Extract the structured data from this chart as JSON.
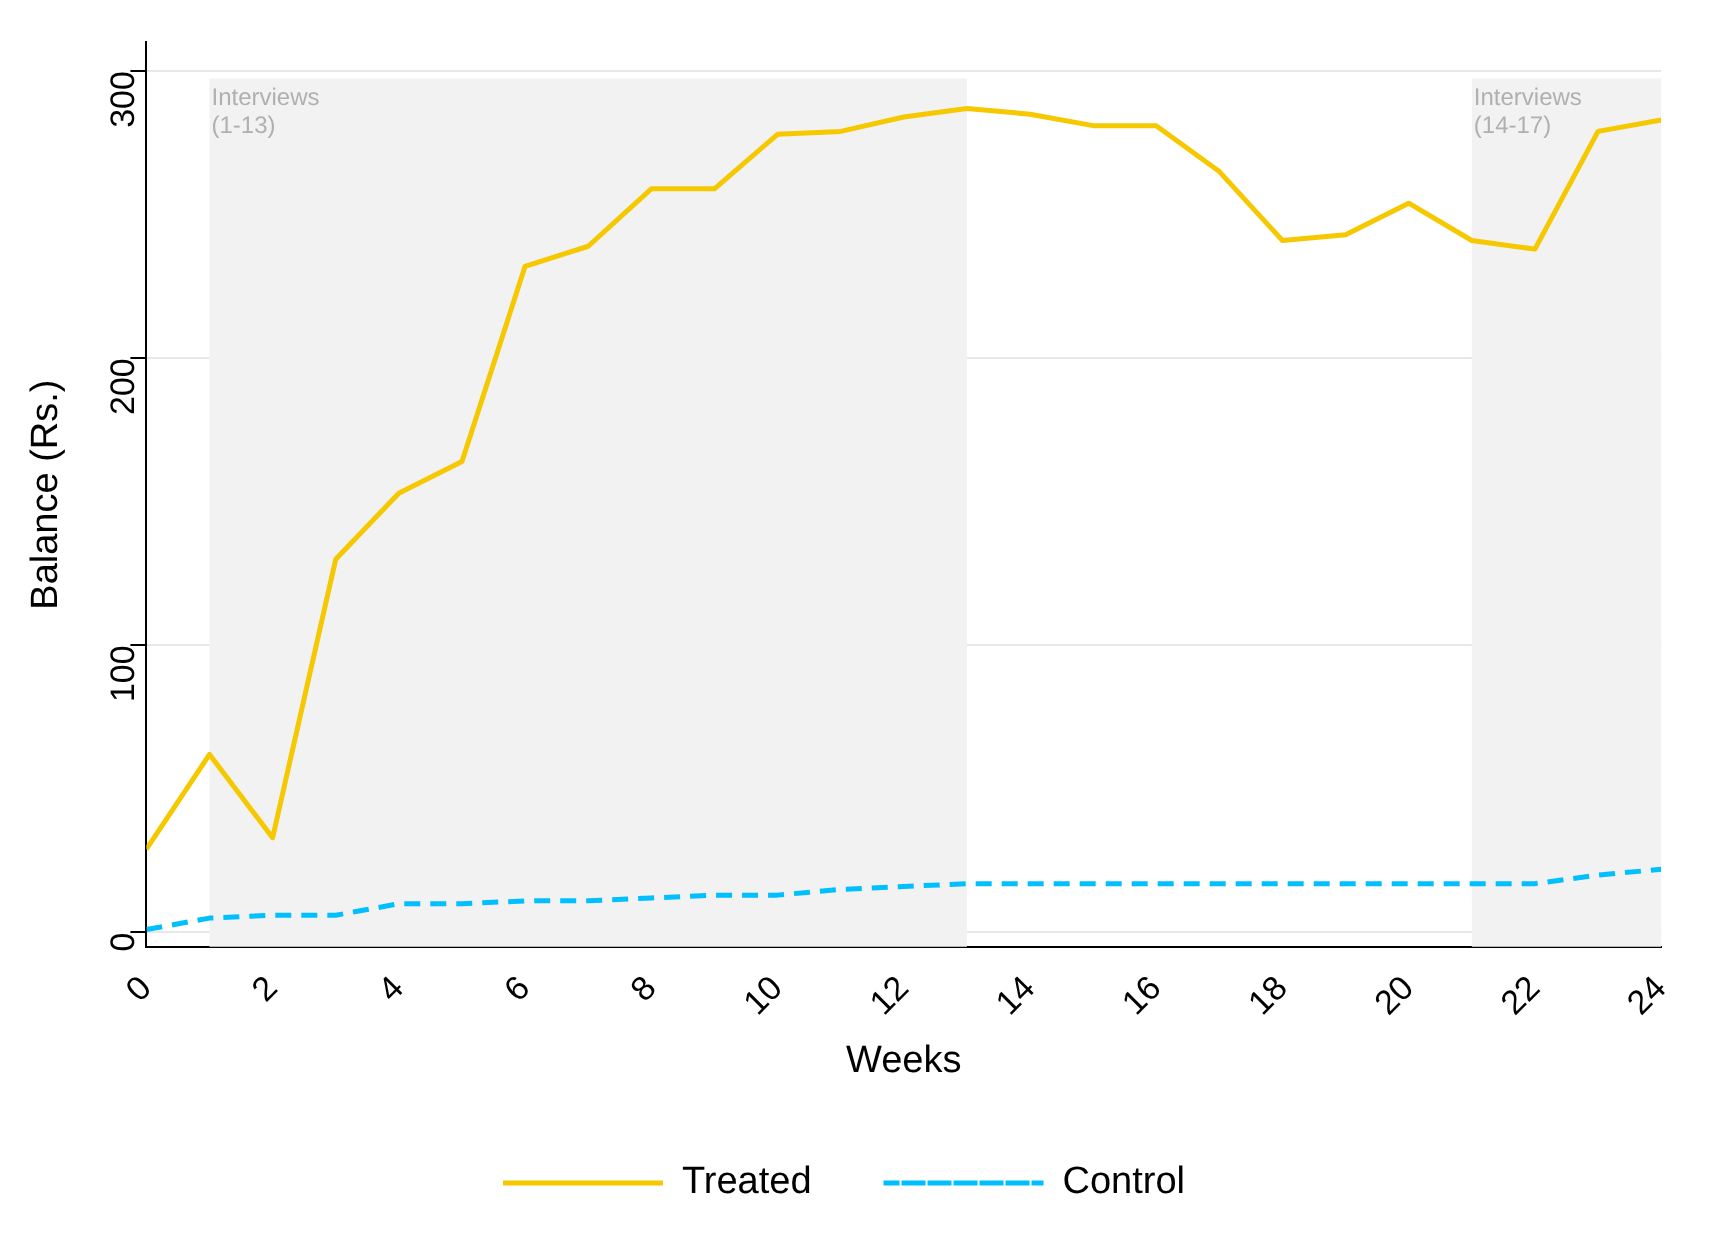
{
  "chart_data": {
    "type": "line",
    "xlabel": "Weeks",
    "ylabel": "Balance (Rs.)",
    "x": [
      0,
      1,
      2,
      3,
      4,
      5,
      6,
      7,
      8,
      9,
      10,
      11,
      12,
      13,
      14,
      15,
      16,
      17,
      18,
      19,
      20,
      21,
      22,
      23,
      24
    ],
    "series": [
      {
        "name": "Treated",
        "color": "#f5c800",
        "line_style": "solid",
        "values": [
          29,
          62,
          33,
          130,
          153,
          164,
          232,
          239,
          259,
          259,
          278,
          279,
          284,
          287,
          285,
          281,
          281,
          265,
          241,
          243,
          254,
          241,
          238,
          279,
          283
        ]
      },
      {
        "name": "Control",
        "color": "#00bfff",
        "line_style": "dashed",
        "values": [
          1,
          5,
          6,
          6,
          10,
          10,
          11,
          11,
          12,
          13,
          13,
          15,
          16,
          17,
          17,
          17,
          17,
          17,
          17,
          17,
          17,
          17,
          17,
          20,
          22
        ]
      }
    ],
    "xlim": [
      0,
      24
    ],
    "xticks": [
      0,
      2,
      4,
      6,
      8,
      10,
      12,
      14,
      16,
      18,
      20,
      22,
      24
    ],
    "ylim": [
      -5,
      310
    ],
    "yticks": [
      0,
      100,
      200,
      300
    ],
    "bands": [
      {
        "axis": "x",
        "from": 1,
        "to": 13,
        "label": "Interviews (1-13)",
        "color": "#f2f2f2"
      },
      {
        "axis": "x",
        "from": 21,
        "to": 24,
        "label": "Interviews (14-17)",
        "color": "#f2f2f2"
      }
    ],
    "grid": "y",
    "legend": "bottom",
    "marker": "none"
  }
}
